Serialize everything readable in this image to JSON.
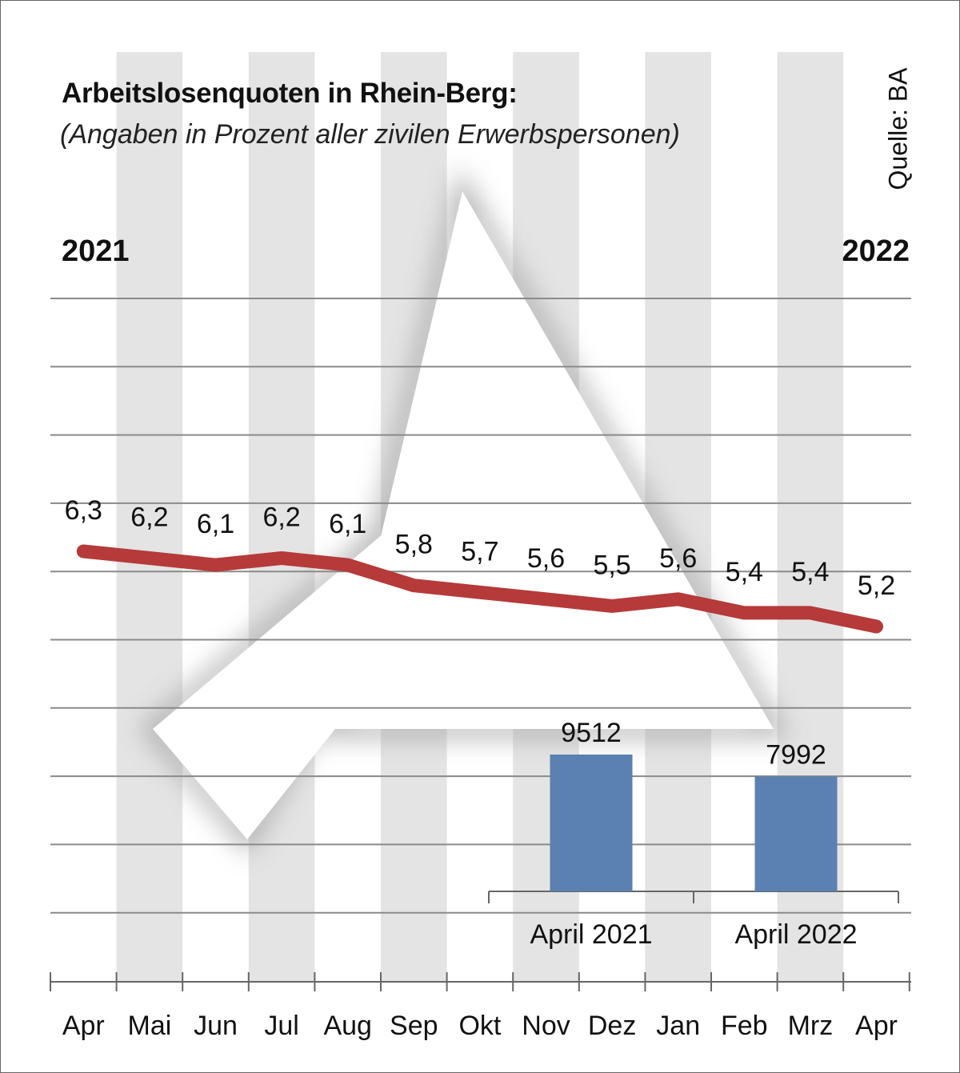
{
  "title": "Arbeitslosenquoten in Rhein-Berg:",
  "subtitle": "(Angaben in Prozent aller zivilen Erwerbspersonen)",
  "source": "Quelle: BA",
  "year_start": "2021",
  "year_end": "2022",
  "colors": {
    "line": "#b53a39",
    "bar": "#5b80b2",
    "stripe": "#e4e4e4",
    "grid": "#8a8a8a",
    "logo": "#d2d2d2"
  },
  "logo_icon": "triangle-logo-watermark-icon",
  "chart_data": [
    {
      "type": "line",
      "title": "Arbeitslosenquoten in Rhein-Berg:",
      "subtitle": "(Angaben in Prozent aller zivilen Erwerbspersonen)",
      "categories": [
        "Apr",
        "Mai",
        "Jun",
        "Jul",
        "Aug",
        "Sep",
        "Okt",
        "Nov",
        "Dez",
        "Jan",
        "Feb",
        "Mrz",
        "Apr"
      ],
      "series": [
        {
          "values": [
            6.3,
            6.2,
            6.1,
            6.2,
            6.1,
            5.8,
            5.7,
            5.6,
            5.5,
            5.6,
            5.4,
            5.4,
            5.2
          ],
          "labels": [
            "6,3",
            "6,2",
            "6,1",
            "6,2",
            "6,1",
            "5,8",
            "5,7",
            "5,6",
            "5,5",
            "5,6",
            "5,4",
            "5,4",
            "5,2"
          ]
        }
      ],
      "ylim": [
        3.5,
        8.0
      ],
      "grid": true,
      "alternating_column_stripes": true
    },
    {
      "type": "bar",
      "categories": [
        "April 2021",
        "April 2022"
      ],
      "values": [
        9512,
        7992
      ],
      "labels": [
        "9512",
        "7992"
      ],
      "ylim": [
        0,
        9512
      ]
    }
  ]
}
